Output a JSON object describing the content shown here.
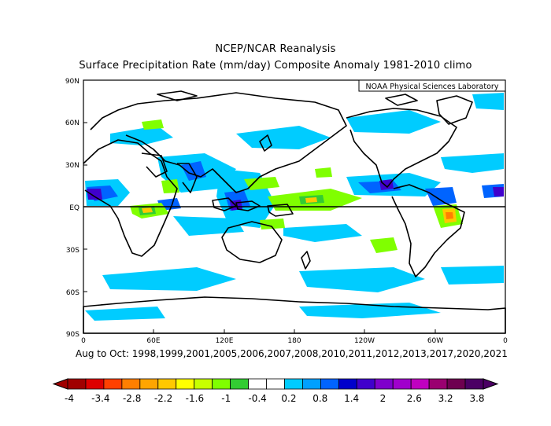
{
  "header": {
    "title": "NCEP/NCAR Reanalysis",
    "subtitle": "Surface Precipitation Rate (mm/day) Composite Anomaly 1981-2010 climo"
  },
  "map": {
    "credit": "NOAA Physical Sciences Laboratory",
    "lat_labels": [
      "90N",
      "60N",
      "30N",
      "EQ",
      "30S",
      "60S",
      "90S"
    ],
    "lon_labels": [
      "0",
      "60E",
      "120E",
      "180",
      "120W",
      "60W",
      "0"
    ]
  },
  "footer": {
    "period": "Aug to Oct: 1998,1999,2001,2005,2006,2007,2008,2010,2011,2012,2013,2017,2020,2021"
  },
  "colorbar": {
    "labels": [
      "-4",
      "-3.4",
      "-2.8",
      "-2.2",
      "-1.6",
      "-1",
      "-0.4",
      "0.2",
      "0.8",
      "1.4",
      "2",
      "2.6",
      "3.2",
      "3.8"
    ],
    "colors": [
      "#a00000",
      "#dd0000",
      "#ff4000",
      "#ff7f00",
      "#ffa500",
      "#ffc800",
      "#ffff00",
      "#c8ff00",
      "#80ff00",
      "#33cc33",
      "#ffffff",
      "#ffffff",
      "#00ccff",
      "#00a0ff",
      "#0064ff",
      "#0000cc",
      "#4000cc",
      "#7f00cc",
      "#a000cc",
      "#c000c0",
      "#9a0070",
      "#6e0050",
      "#4b0064"
    ]
  }
}
